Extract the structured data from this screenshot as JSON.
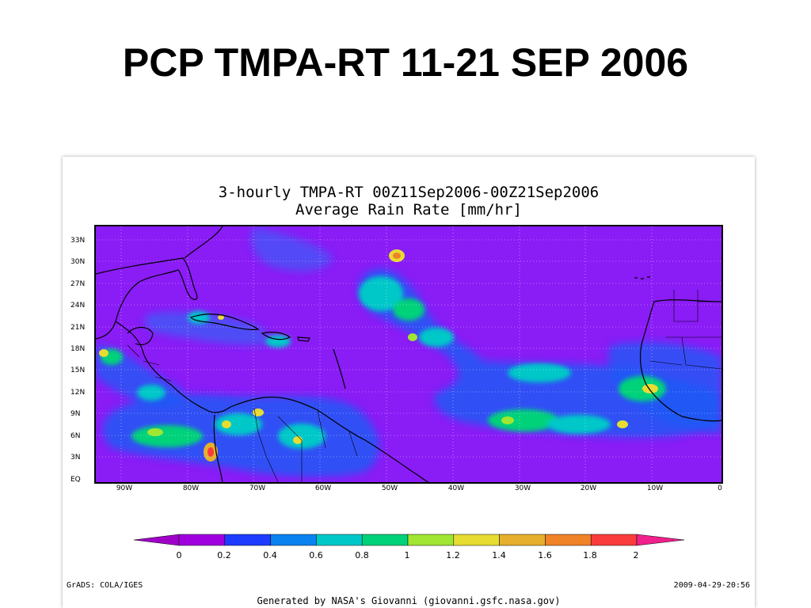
{
  "slide": {
    "title": "PCP TMPA-RT 11-21 SEP 2006"
  },
  "map": {
    "title_line1": "3-hourly TMPA-RT 00Z11Sep2006-00Z21Sep2006",
    "title_line2": "Average Rain Rate [mm/hr]",
    "lat_labels": [
      "33N",
      "30N",
      "27N",
      "24N",
      "21N",
      "18N",
      "15N",
      "12N",
      "9N",
      "6N",
      "3N",
      "EQ"
    ],
    "lon_labels": [
      "90W",
      "80W",
      "70W",
      "60W",
      "50W",
      "40W",
      "30W",
      "20W",
      "10W",
      "0"
    ],
    "background_color": "#8a1cf6"
  },
  "colorbar": {
    "labels": [
      "0",
      "0.2",
      "0.4",
      "0.6",
      "0.8",
      "1",
      "1.2",
      "1.4",
      "1.6",
      "1.8",
      "2"
    ],
    "colors": [
      "#a000e0",
      "#1e3cff",
      "#0a82f0",
      "#00c8c8",
      "#00d27a",
      "#a0e632",
      "#e6dc32",
      "#e6af2d",
      "#f08228",
      "#fa3c3c"
    ],
    "under_color": "#9f00c8",
    "over_color": "#f0208c"
  },
  "footer": {
    "credit": "GrADS: COLA/IGES",
    "timestamp": "2009-04-29-20:56",
    "generated_by": "Generated by NASA's Giovanni (giovanni.gsfc.nasa.gov)"
  }
}
